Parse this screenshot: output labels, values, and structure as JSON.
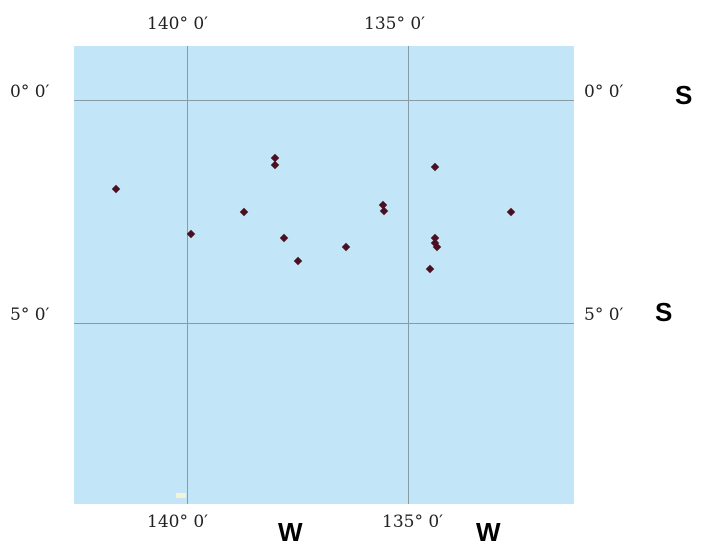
{
  "map": {
    "top_labels": [
      "140° 0′",
      "135° 0′"
    ],
    "bottom_labels": [
      "140° 0′",
      "135° 0′"
    ],
    "left_labels": [
      "0° 0′",
      "5° 0′"
    ],
    "right_labels": [
      "0° 0′",
      "5° 0′"
    ],
    "right_dirs": [
      "S",
      "S"
    ],
    "bottom_dirs": [
      "W",
      "W"
    ],
    "colors": {
      "water": "#c2e6f8",
      "grid": "#8a9aa3",
      "point": "#4a1020"
    },
    "points": [
      {
        "lon": 141.6,
        "lat": 2.0
      },
      {
        "lon": 138.0,
        "lat": 1.3
      },
      {
        "lon": 138.0,
        "lat": 1.45
      },
      {
        "lon": 138.7,
        "lat": 2.5
      },
      {
        "lon": 137.8,
        "lat": 3.1
      },
      {
        "lon": 137.5,
        "lat": 3.6
      },
      {
        "lon": 136.4,
        "lat": 3.3
      },
      {
        "lon": 134.4,
        "lat": 1.5
      },
      {
        "lon": 134.4,
        "lat": 3.1
      },
      {
        "lon": 134.4,
        "lat": 3.2
      },
      {
        "lon": 134.35,
        "lat": 3.3
      },
      {
        "lon": 134.5,
        "lat": 3.8
      }
    ]
  }
}
